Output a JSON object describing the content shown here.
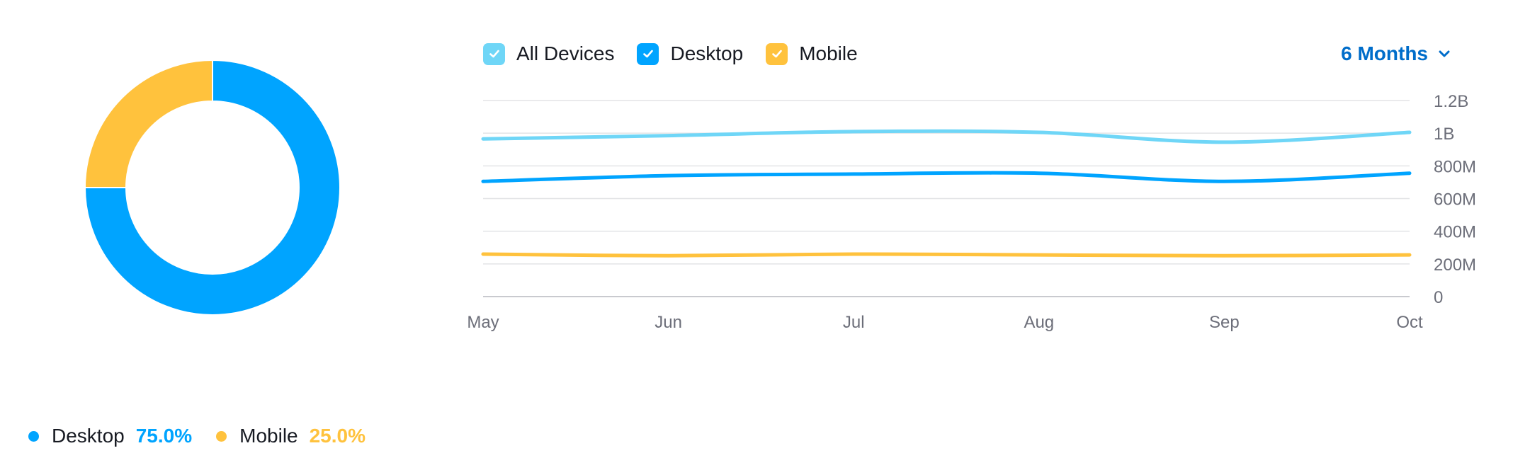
{
  "colors": {
    "all_devices": "#6fd6f7",
    "desktop": "#00a4ff",
    "mobile": "#ffc23d",
    "link": "#006dca",
    "grid": "#e3e4e6",
    "axis_text": "#6c6e79"
  },
  "filters": {
    "series": [
      {
        "label": "All Devices",
        "checked": true,
        "color_key": "all_devices",
        "icon": "checkmark-icon"
      },
      {
        "label": "Desktop",
        "checked": true,
        "color_key": "desktop",
        "icon": "checkmark-icon"
      },
      {
        "label": "Mobile",
        "checked": true,
        "color_key": "mobile",
        "icon": "checkmark-icon"
      }
    ],
    "period_label": "6 Months",
    "period_icon": "chevron-down-icon"
  },
  "donut_legend": [
    {
      "label": "Desktop",
      "percent": "75.0%",
      "color_key": "desktop"
    },
    {
      "label": "Mobile",
      "percent": "25.0%",
      "color_key": "mobile"
    }
  ],
  "chart_data": [
    {
      "type": "pie",
      "variant": "donut",
      "slices": [
        {
          "name": "Desktop",
          "value": 75.0
        },
        {
          "name": "Mobile",
          "value": 25.0
        }
      ]
    },
    {
      "type": "line",
      "categories": [
        "May",
        "Jun",
        "Jul",
        "Aug",
        "Sep",
        "Oct"
      ],
      "series": [
        {
          "name": "All Devices",
          "values": [
            965000000,
            985000000,
            1010000000,
            1005000000,
            945000000,
            1005000000
          ]
        },
        {
          "name": "Desktop",
          "values": [
            705000000,
            740000000,
            750000000,
            755000000,
            705000000,
            755000000
          ]
        },
        {
          "name": "Mobile",
          "values": [
            260000000,
            250000000,
            260000000,
            255000000,
            250000000,
            255000000
          ]
        }
      ],
      "ylim": [
        0,
        1200000000
      ],
      "y_ticks": [
        {
          "value": 0,
          "label": "0"
        },
        {
          "value": 200000000,
          "label": "200M"
        },
        {
          "value": 400000000,
          "label": "400M"
        },
        {
          "value": 600000000,
          "label": "600M"
        },
        {
          "value": 800000000,
          "label": "800M"
        },
        {
          "value": 1000000000,
          "label": "1B"
        },
        {
          "value": 1200000000,
          "label": "1.2B"
        }
      ],
      "y_axis_position": "right",
      "grid": true,
      "legend": "top-left"
    }
  ]
}
